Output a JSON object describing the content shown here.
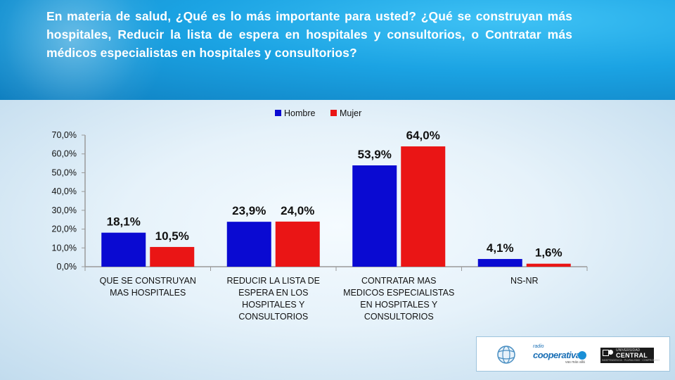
{
  "header": {
    "question": "En materia de salud, ¿Qué es lo más importante para usted? ¿Qué se construyan más hospitales, Reducir la lista de espera en hospitales y consultorios, o Contratar más médicos especialistas en hospitales y consultorios?"
  },
  "colors": {
    "hombre": "#0a0ad2",
    "mujer": "#ea1515",
    "header_blue": "#1ba3e3"
  },
  "chart_data": {
    "type": "bar",
    "categories": [
      [
        "QUE SE  CONSTRUYAN",
        "MAS HOSPITALES"
      ],
      [
        "REDUCIR LA LISTA DE",
        "ESPERA EN LOS",
        "HOSPITALES Y",
        "CONSULTORIOS"
      ],
      [
        "CONTRATAR MAS",
        "MEDICOS ESPECIALISTAS",
        "EN HOSPITALES Y",
        "CONSULTORIOS"
      ],
      [
        "NS-NR"
      ]
    ],
    "series": [
      {
        "name": "Hombre",
        "values": [
          18.1,
          23.9,
          53.9,
          4.1
        ],
        "labels": [
          "18,1%",
          "23,9%",
          "53,9%",
          "4,1%"
        ]
      },
      {
        "name": "Mujer",
        "values": [
          10.5,
          24.0,
          64.0,
          1.6
        ],
        "labels": [
          "10,5%",
          "24,0%",
          "64,0%",
          "1,6%"
        ]
      }
    ],
    "ylim": [
      0,
      70
    ],
    "yticks": [
      "0,0%",
      "10,0%",
      "20,0%",
      "30,0%",
      "40,0%",
      "50,0%",
      "60,0%",
      "70,0%"
    ],
    "legend_position": "top-center",
    "grid": false
  },
  "logos": {
    "coop_small": "radio",
    "coop_name": "cooperativa",
    "coop_tag": "vas más allá",
    "central_top": "UNIVERSIDAD",
    "central_name": "CENTRAL",
    "central_tag": "INDEPENDENCIA · PLURALISMO · COMPROMISO"
  }
}
